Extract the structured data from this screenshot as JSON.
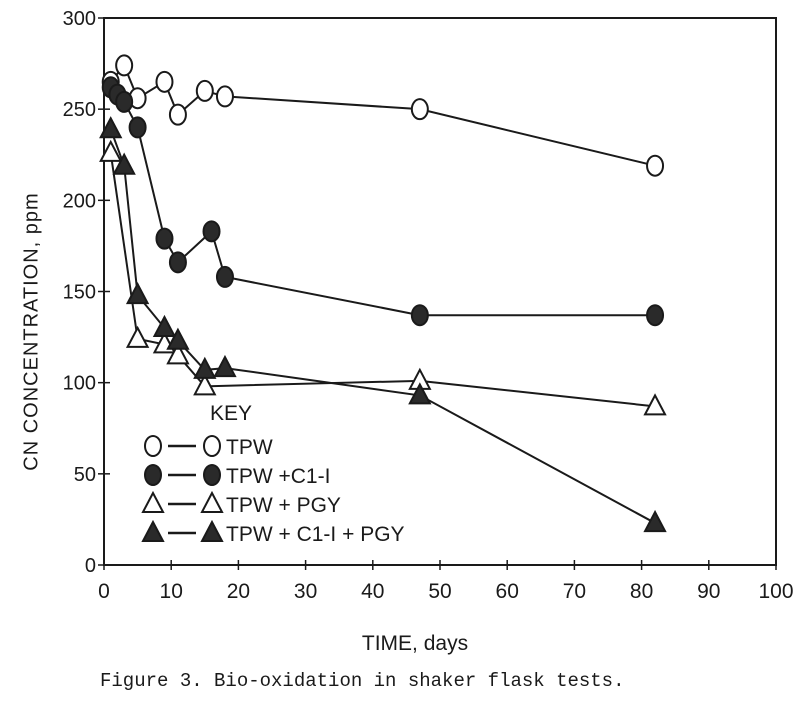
{
  "chart_data": {
    "type": "line",
    "title": "",
    "caption": "Figure 3.  Bio-oxidation in shaker flask tests.",
    "xlabel": "TIME, days",
    "ylabel": "CN CONCENTRATION, ppm",
    "xlim": [
      0,
      100
    ],
    "ylim": [
      0,
      300
    ],
    "xticks": [
      0,
      10,
      20,
      30,
      40,
      50,
      60,
      70,
      80,
      90,
      100
    ],
    "yticks": [
      0,
      50,
      100,
      150,
      200,
      250,
      300
    ],
    "grid": false,
    "legend": {
      "title": "KEY",
      "position": "lower-left inside",
      "entries": [
        "TPW",
        "TPW +C1-I",
        "TPW + PGY",
        "TPW + C1-I + PGY"
      ]
    },
    "series": [
      {
        "name": "TPW",
        "marker": "open-circle",
        "x": [
          1,
          3,
          5,
          9,
          11,
          15,
          18,
          47,
          82
        ],
        "y": [
          265,
          274,
          256,
          265,
          247,
          260,
          257,
          250,
          219
        ]
      },
      {
        "name": "TPW +C1-I",
        "marker": "filled-circle",
        "x": [
          1,
          2,
          3,
          5,
          9,
          11,
          16,
          18,
          47,
          82
        ],
        "y": [
          262,
          258,
          254,
          240,
          179,
          166,
          183,
          158,
          137,
          137
        ]
      },
      {
        "name": "TPW + PGY",
        "marker": "open-triangle",
        "x": [
          1,
          5,
          9,
          11,
          15,
          47,
          82
        ],
        "y": [
          226,
          124,
          121,
          115,
          98,
          101,
          87
        ]
      },
      {
        "name": "TPW + C1-I + PGY",
        "marker": "filled-triangle",
        "x": [
          1,
          3,
          5,
          9,
          11,
          15,
          18,
          47,
          82
        ],
        "y": [
          239,
          219,
          148,
          130,
          123,
          107,
          108,
          93,
          23
        ]
      }
    ]
  }
}
